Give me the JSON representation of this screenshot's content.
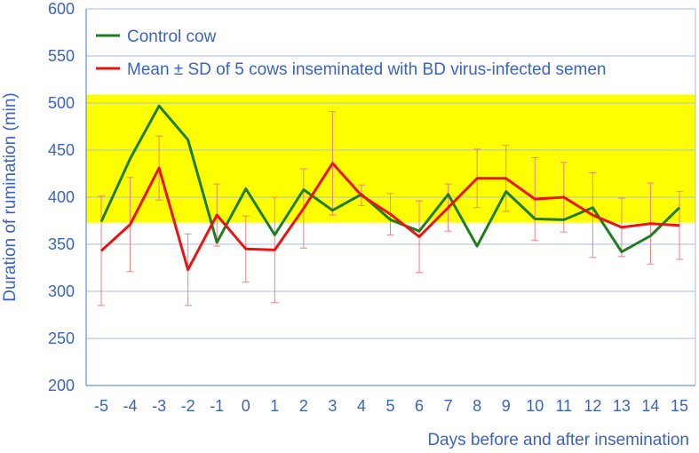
{
  "chart_data": {
    "type": "line",
    "xlabel": "Days before and after insemination",
    "ylabel": "Duration of rumination (min)",
    "ylim": [
      200,
      600
    ],
    "yticks": [
      "200",
      "250",
      "300",
      "350",
      "400",
      "450",
      "500",
      "550",
      "600"
    ],
    "x": [
      "-5",
      "-4",
      "-3",
      "-2",
      "-1",
      "0",
      "1",
      "2",
      "3",
      "4",
      "5",
      "6",
      "7",
      "8",
      "9",
      "10",
      "11",
      "12",
      "13",
      "14",
      "15"
    ],
    "reference_band": {
      "from": 373,
      "to": 509,
      "color": "#ffff00"
    },
    "grid": "horizontal",
    "legend_placement": "top-left",
    "series": [
      {
        "name": "Control cow",
        "color": "#1e7d1e",
        "values": [
          374,
          441,
          497,
          461,
          352,
          409,
          360,
          408,
          386,
          403,
          376,
          364,
          403,
          348,
          406,
          377,
          376,
          389,
          342,
          359,
          389
        ]
      },
      {
        "name": "Mean ± SD of 5 cows inseminated with BD virus-infected semen",
        "color": "#ee1111",
        "error_color": "#f08080",
        "values": [
          343,
          371,
          431,
          323,
          381,
          345,
          344,
          388,
          436,
          402,
          382,
          358,
          389,
          420,
          420,
          398,
          400,
          381,
          368,
          372,
          370
        ],
        "sd": [
          58,
          50,
          34,
          38,
          33,
          35,
          56,
          42,
          55,
          11,
          22,
          38,
          25,
          31,
          35,
          44,
          37,
          45,
          31,
          43,
          36
        ]
      }
    ]
  }
}
